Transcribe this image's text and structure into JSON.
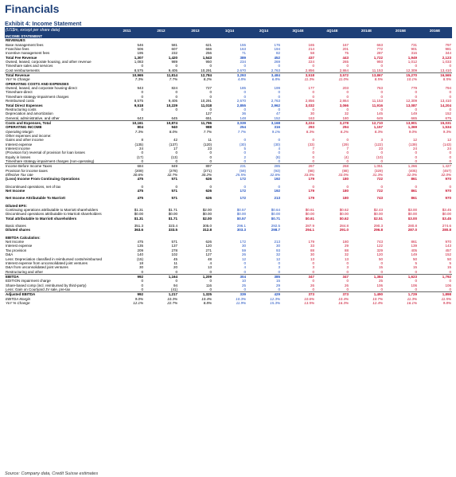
{
  "title": "Financials",
  "exhibit_label": "Exhibit 4:",
  "exhibit_title": "Income Statement",
  "header_label": "(US$m, except per share data)",
  "columns": [
    "2011",
    "2012",
    "2013",
    "1Q14",
    "2Q14",
    "3Q14E",
    "4Q14E",
    "2014E",
    "2015E",
    "2016E"
  ],
  "column_colors": [
    "k",
    "k",
    "k",
    "b",
    "b",
    "r",
    "r",
    "r",
    "r",
    "r"
  ],
  "rows": [
    {
      "type": "sec",
      "label": "INCOME STATEMENT"
    },
    {
      "type": "bold",
      "label": "REVENUES"
    },
    {
      "label": "Base management fees",
      "vals": [
        "546",
        "581",
        "621",
        "155",
        "176",
        "165",
        "167",
        "663",
        "731",
        "797"
      ]
    },
    {
      "label": "Franchise fees",
      "vals": [
        "506",
        "607",
        "666",
        "163",
        "194",
        "214",
        "201",
        "772",
        "901",
        "981"
      ]
    },
    {
      "label": "Incentive management fees",
      "vals": [
        "195",
        "232",
        "256",
        "71",
        "82",
        "58",
        "75",
        "287",
        "316",
        "344"
      ]
    },
    {
      "label": "Total Fee Revenue",
      "style": "bold",
      "vals": [
        "1,307",
        "1,420",
        "1,543",
        "389",
        "452",
        "437",
        "443",
        "1,722",
        "1,949",
        "2,123"
      ]
    },
    {
      "label": "Owned, leased, corporate housing, and other revenue",
      "vals": [
        "1,083",
        "989",
        "950",
        "234",
        "269",
        "224",
        "265",
        "993",
        "1,012",
        "1,033"
      ]
    },
    {
      "label": "Timeshare sales and services",
      "vals": [
        "0",
        "0",
        "0",
        "0",
        "0",
        "0",
        "0",
        "0",
        "0",
        "0"
      ]
    },
    {
      "label": "Cost reimbursements",
      "style": "line",
      "vals": [
        "8,575",
        "9,405",
        "10,291",
        "2,670",
        "2,763",
        "2,856",
        "2,864",
        "11,153",
        "12,309",
        "13,410"
      ]
    },
    {
      "label": "Total Revenue",
      "style": "bold",
      "vals": [
        "10,965",
        "11,814",
        "12,784",
        "3,293",
        "3,484",
        "3,518",
        "3,572",
        "13,867",
        "15,270",
        "16,565"
      ]
    },
    {
      "label": "YoY % Change",
      "style": "ital",
      "vals": [
        "7.3%",
        "7.7%",
        "8.2%",
        "4.8%",
        "6.8%",
        "11.3%",
        "11.0%",
        "8.5%",
        "10.1%",
        "8.5%"
      ]
    },
    {
      "type": "bold",
      "label": "OPERATING COSTS AND EXPENSES"
    },
    {
      "label": "Owned, leased, and corporate housing-direct",
      "vals": [
        "943",
        "824",
        "727",
        "185",
        "199",
        "177",
        "203",
        "763",
        "779",
        "794"
      ]
    },
    {
      "label": "Timeshare-direct",
      "vals": [
        "0",
        "0",
        "0",
        "0",
        "0",
        "0",
        "0",
        "0",
        "0",
        "0"
      ]
    },
    {
      "label": "Timeshare strategy-impairment charges",
      "vals": [
        "0",
        "0",
        "0",
        "0",
        "0",
        "0",
        "0",
        "0",
        "0",
        "0"
      ]
    },
    {
      "label": "Reimbursed costs",
      "vals": [
        "8,575",
        "9,405",
        "10,291",
        "2,670",
        "2,763",
        "2,856",
        "2,864",
        "11,153",
        "12,309",
        "13,410"
      ]
    },
    {
      "label": "Total Direct Expenses",
      "style": "bold",
      "vals": [
        "9,518",
        "10,229",
        "11,018",
        "2,855",
        "2,962",
        "3,032",
        "3,066",
        "11,916",
        "13,087",
        "14,204"
      ]
    },
    {
      "label": "Restructuring costs",
      "vals": [
        "0",
        "0",
        "0",
        "0",
        "0",
        "0",
        "0",
        "0",
        "0",
        "0"
      ]
    },
    {
      "label": "Depreciation and amortization",
      "vals": [
        "",
        "",
        "127",
        "36",
        "47",
        "30",
        "32",
        "145",
        "149",
        "152"
      ]
    },
    {
      "label": "General, administrative, and other",
      "style": "line",
      "vals": [
        "643",
        "645",
        "651",
        "148",
        "152",
        "163",
        "180",
        "649",
        "665",
        "675"
      ]
    },
    {
      "label": "Costs and Expenses, Total",
      "style": "bold",
      "vals": [
        "10,161",
        "10,874",
        "11,796",
        "3,039",
        "3,168",
        "3,224",
        "3,278",
        "12,710",
        "13,901",
        "15,031"
      ]
    },
    {
      "label": "OPERATING INCOME",
      "style": "bold",
      "vals": [
        "804",
        "940",
        "988",
        "254",
        "316",
        "293",
        "294",
        "1,157",
        "1,369",
        "1,534"
      ]
    },
    {
      "label": "Operating Margin",
      "style": "ital",
      "vals": [
        "7.3%",
        "8.0%",
        "7.7%",
        "7.7%",
        "9.1%",
        "8.3%",
        "8.2%",
        "8.3%",
        "9.0%",
        "9.3%"
      ]
    },
    {
      "label": "Other expenses and income:",
      "vals": [
        "",
        "",
        "",
        "",
        "",
        "",
        "",
        "",
        "",
        ""
      ]
    },
    {
      "label": "Gains and other income",
      "vals": [
        "8",
        "42",
        "11",
        "0",
        "0",
        "0",
        "0",
        "3",
        "12",
        "12"
      ]
    },
    {
      "label": "Interest expense",
      "vals": [
        "(135)",
        "(137)",
        "(120)",
        "(30)",
        "(30)",
        "(33)",
        "(29)",
        "(122)",
        "(139)",
        "(143)"
      ]
    },
    {
      "label": "Interest income",
      "vals": [
        "24",
        "17",
        "23",
        "5",
        "4",
        "7",
        "7",
        "23",
        "24",
        "24"
      ]
    },
    {
      "label": "(Provision for) reversal of provision for loan losses",
      "vals": [
        "0",
        "0",
        "0",
        "0",
        "0",
        "0",
        "0",
        "0",
        "0",
        "0"
      ]
    },
    {
      "label": "Equity in losses",
      "vals": [
        "(17)",
        "(13)",
        "0",
        "2",
        "(8)",
        "0",
        "(4)",
        "(10)",
        "0",
        "0"
      ]
    },
    {
      "label": "Timeshare strategy-impairment charges (non-operating)",
      "style": "line",
      "vals": [
        "0",
        "0",
        "0",
        "0",
        "0",
        "0",
        "0",
        "0",
        "0",
        "0"
      ]
    },
    {
      "label": "Income Before Income Taxes",
      "vals": [
        "684",
        "849",
        "897",
        "231",
        "285",
        "267",
        "268",
        "1,051",
        "1,266",
        "1,427"
      ]
    },
    {
      "label": "Provision for income taxes",
      "vals": [
        "(209)",
        "(278)",
        "(271)",
        "(59)",
        "(93)",
        "(88)",
        "(88)",
        "(329)",
        "(405)",
        "(457)"
      ]
    },
    {
      "label": "Effective Tax rate",
      "style": "ital",
      "vals": [
        "30.6%",
        "32.7%",
        "30.2%",
        "25.5%",
        "32.6%",
        "33.0%",
        "33.0%",
        "31.3%",
        "32.0%",
        "32.0%"
      ]
    },
    {
      "label": "(Loss) Income From Continuing Operations",
      "style": "bold",
      "vals": [
        "475",
        "571",
        "626",
        "172",
        "192",
        "179",
        "180",
        "722",
        "861",
        "970"
      ]
    },
    {
      "type": "spacer"
    },
    {
      "label": "Discontinued operations, net of tax",
      "vals": [
        "0",
        "0",
        "0",
        "0",
        "0",
        "0",
        "0",
        "0",
        "0",
        "0"
      ]
    },
    {
      "label": "Net Income",
      "style": "bold",
      "vals": [
        "475",
        "571",
        "626",
        "172",
        "192",
        "179",
        "180",
        "722",
        "861",
        "970"
      ]
    },
    {
      "type": "spacer"
    },
    {
      "label": "Net Income Attributable To Marriott",
      "style": "bold",
      "vals": [
        "475",
        "571",
        "626",
        "172",
        "213",
        "179",
        "180",
        "743",
        "861",
        "970"
      ]
    },
    {
      "type": "spacer"
    },
    {
      "type": "bold",
      "label": "Diluted EPS:"
    },
    {
      "label": "Continuing operations attributable to Marriott shareholders",
      "vals": [
        "$1.31",
        "$1.71",
        "$2.00",
        "$0.57",
        "$0.64",
        "$0.61",
        "$0.62",
        "$2.43",
        "$3.00",
        "$3.45"
      ]
    },
    {
      "label": "Discontinued operations attributable to Marriott shareholders",
      "vals": [
        "$0.00",
        "$0.00",
        "$0.00",
        "$0.00",
        "$0.00",
        "$0.00",
        "$0.00",
        "$0.00",
        "$0.00",
        "$0.00"
      ]
    },
    {
      "label": "Total attributable to Marriott shareholders",
      "style": "bold",
      "vals": [
        "$1.31",
        "$1.71",
        "$2.00",
        "$0.57",
        "$0.71",
        "$0.61",
        "$0.62",
        "$2.51",
        "$3.00",
        "$3.45"
      ]
    },
    {
      "type": "spacer"
    },
    {
      "label": "Basic shares",
      "vals": [
        "351.3",
        "323.4",
        "305.0",
        "296.1",
        "292.5",
        "287.9",
        "284.8",
        "290.3",
        "280.8",
        "274.6"
      ]
    },
    {
      "label": "Diluted shares",
      "style": "bold",
      "vals": [
        "363.6",
        "333.5",
        "312.8",
        "303.3",
        "298.7",
        "294.1",
        "291.0",
        "296.8",
        "287.0",
        "280.8"
      ]
    },
    {
      "type": "spacer"
    },
    {
      "type": "bold",
      "label": "EBITDA Calculation:"
    },
    {
      "label": "Net Income",
      "vals": [
        "475",
        "571",
        "626",
        "172",
        "213",
        "179",
        "180",
        "743",
        "861",
        "970"
      ]
    },
    {
      "label": "Interest expense",
      "vals": [
        "135",
        "137",
        "120",
        "30",
        "30",
        "33",
        "29",
        "122",
        "139",
        "143"
      ]
    },
    {
      "label": "Tax provision",
      "vals": [
        "209",
        "278",
        "271",
        "59",
        "93",
        "88",
        "88",
        "329",
        "405",
        "457"
      ]
    },
    {
      "label": "D&A",
      "vals": [
        "140",
        "102",
        "127",
        "26",
        "32",
        "30",
        "32",
        "120",
        "149",
        "152"
      ]
    },
    {
      "label": "Less: Depreciation classified in reimbursed costs/reimbursed",
      "vals": [
        "(15)",
        "45",
        "48",
        "12",
        "12",
        "13",
        "13",
        "50",
        "50",
        "50"
      ]
    },
    {
      "label": "Interest expense from unconsolidated joint ventures",
      "vals": [
        "18",
        "11",
        "4",
        "0",
        "0",
        "0",
        "0",
        "0",
        "5",
        "5"
      ]
    },
    {
      "label": "D&A from unconsolidated joint ventures",
      "vals": [
        "30",
        "20",
        "13",
        "4",
        "3",
        "3",
        "3",
        "15",
        "15",
        "15"
      ]
    },
    {
      "label": "Restructuring and other",
      "style": "line",
      "vals": [
        "0",
        "0",
        "0",
        "0",
        "0",
        "0",
        "0",
        "0",
        "0",
        "0"
      ]
    },
    {
      "label": "EBITDA",
      "style": "bold",
      "vals": [
        "992",
        "1,164",
        "1,209",
        "304",
        "385",
        "347",
        "347",
        "1,384",
        "1,623",
        "1,792"
      ]
    },
    {
      "label": "EDITION impairment charge",
      "vals": [
        "0",
        "0",
        "0",
        "10",
        "15",
        "0",
        "0",
        "25",
        "0",
        "0"
      ]
    },
    {
      "label": "Share-based comp (incl. reimbursed by third-party)",
      "vals": [
        "0",
        "94",
        "116",
        "25",
        "29",
        "26",
        "26",
        "106",
        "106",
        "106"
      ]
    },
    {
      "label": "Less: Gain on Courtyard JV sale, pre-tax",
      "style": "line",
      "vals": [
        "0",
        "(41)",
        "0",
        "0",
        "0",
        "0",
        "0",
        "0",
        "0",
        "0"
      ]
    },
    {
      "label": "Adjusted EBITDA",
      "style": "bold",
      "vals": [
        "992",
        "1,217",
        "1,325",
        "339",
        "429",
        "373",
        "373",
        "1,490",
        "1,729",
        "1,898"
      ]
    },
    {
      "label": "EBITDA Margin",
      "style": "ital",
      "vals": [
        "9.0%",
        "10.3%",
        "10.4%",
        "10.3%",
        "12.3%",
        "10.6%",
        "10.4%",
        "10.7%",
        "11.3%",
        "11.5%"
      ]
    },
    {
      "label": "YoY % Change",
      "style": "ital",
      "vals": [
        "12.1%",
        "22.7%",
        "8.8%",
        "11.9%",
        "15.3%",
        "13.5%",
        "16.3%",
        "12.4%",
        "16.1%",
        "9.8%"
      ]
    }
  ],
  "source": "Source: Company data, Credit Suisse estimates"
}
